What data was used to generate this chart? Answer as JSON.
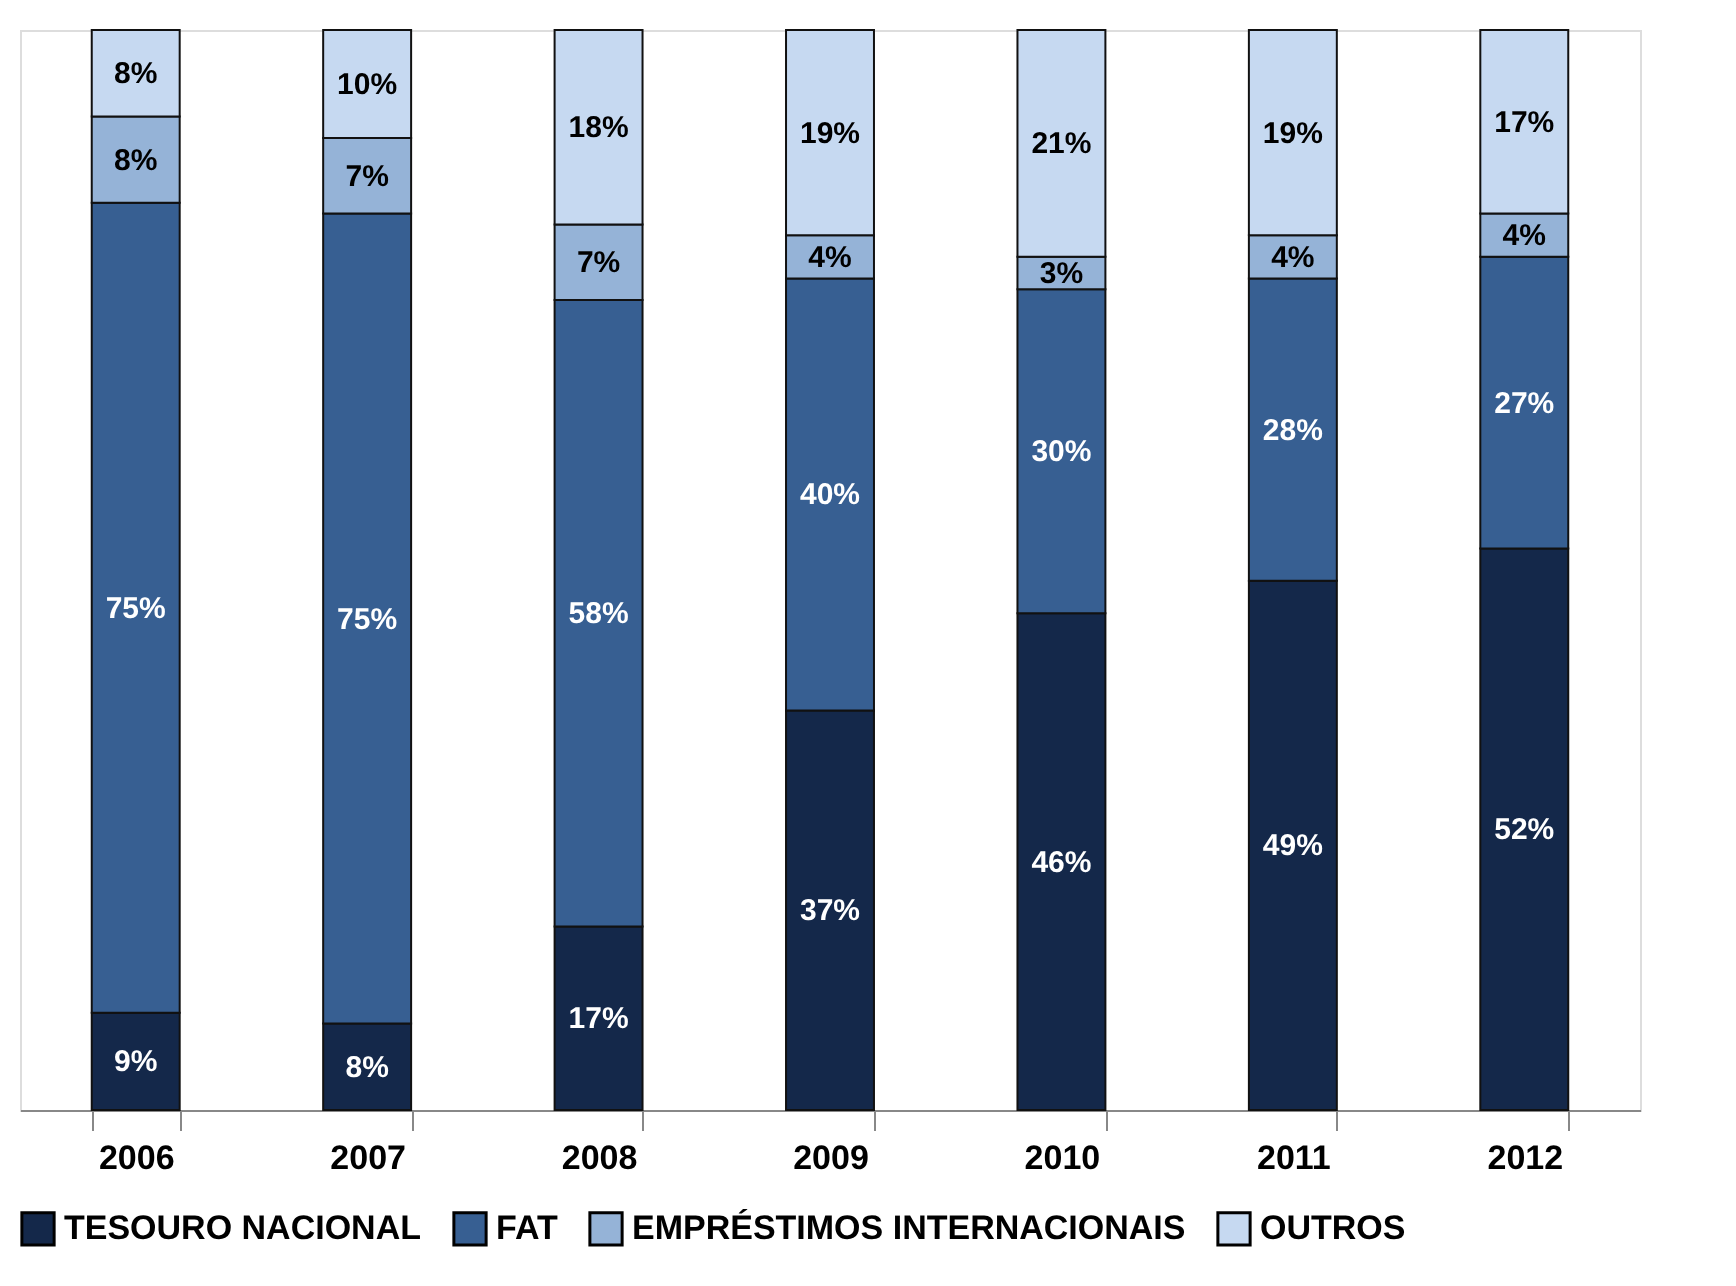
{
  "chart_data": {
    "type": "bar",
    "stacked": true,
    "categories": [
      "2006",
      "2007",
      "2008",
      "2009",
      "2010",
      "2011",
      "2012"
    ],
    "series": [
      {
        "name": "TESOURO NACIONAL",
        "color": "#14284a",
        "values": [
          9,
          8,
          17,
          37,
          46,
          49,
          52
        ],
        "value_labels": [
          "9%",
          "8%",
          "17%",
          "37%",
          "46%",
          "49%",
          "52%"
        ]
      },
      {
        "name": "FAT",
        "color": "#375f92",
        "values": [
          75,
          75,
          58,
          40,
          30,
          28,
          27
        ],
        "value_labels": [
          "75%",
          "75%",
          "58%",
          "40%",
          "30%",
          "28%",
          "27%"
        ]
      },
      {
        "name": "EMPRÉSTIMOS INTERNACIONAIS",
        "color": "#95b3d7",
        "values": [
          8,
          7,
          7,
          4,
          3,
          4,
          4
        ],
        "value_labels": [
          "8%",
          "7%",
          "7%",
          "4%",
          "3%",
          "4%",
          "4%"
        ]
      },
      {
        "name": "OUTROS",
        "color": "#c6d9f1",
        "values": [
          8,
          10,
          18,
          19,
          21,
          19,
          17
        ],
        "value_labels": [
          "8%",
          "10%",
          "18%",
          "19%",
          "21%",
          "19%",
          "17%"
        ]
      }
    ],
    "legend": "bottom",
    "grid": false,
    "tick_labels": "x"
  }
}
